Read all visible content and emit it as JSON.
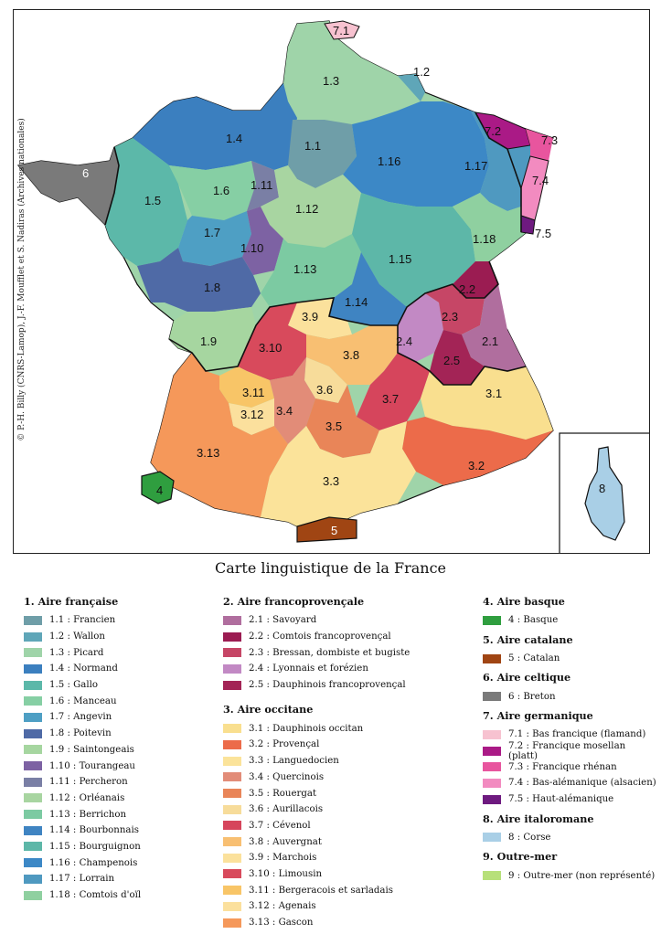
{
  "title": "Carte linguistique de la France",
  "credit": "© P.-H. Billy (CNRS-Lamop), J.-F. Moufflet et S. Nadiras (Archives nationales)",
  "map_labels": {
    "r1_1": "1.1",
    "r1_2": "1.2",
    "r1_3": "1.3",
    "r1_4": "1.4",
    "r1_5": "1.5",
    "r1_6": "1.6",
    "r1_7": "1.7",
    "r1_8": "1.8",
    "r1_9": "1.9",
    "r1_10": "1.10",
    "r1_11": "1.11",
    "r1_12": "1.12",
    "r1_13": "1.13",
    "r1_14": "1.14",
    "r1_15": "1.15",
    "r1_16": "1.16",
    "r1_17": "1.17",
    "r1_18": "1.18",
    "r2_1": "2.1",
    "r2_2": "2.2",
    "r2_3": "2.3",
    "r2_4": "2.4",
    "r2_5": "2.5",
    "r3_1": "3.1",
    "r3_2": "3.2",
    "r3_3": "3.3",
    "r3_4": "3.4",
    "r3_5": "3.5",
    "r3_6": "3.6",
    "r3_7": "3.7",
    "r3_8": "3.8",
    "r3_9": "3.9",
    "r3_10": "3.10",
    "r3_11": "3.11",
    "r3_12": "3.12",
    "r3_13": "3.13",
    "r4": "4",
    "r5": "5",
    "r6": "6",
    "r7_1": "7.1",
    "r7_2": "7.2",
    "r7_3": "7.3",
    "r7_4": "7.4",
    "r7_5": "7.5",
    "r8": "8"
  },
  "colors": {
    "c1_1": "#6f9ea8",
    "c1_2": "#5fa6b8",
    "c1_3": "#9fd4a9",
    "c1_4": "#3b7fbf",
    "c1_5": "#5cb8a9",
    "c1_6": "#86cfa4",
    "c1_7": "#4e9fc4",
    "c1_8": "#4f6aa6",
    "c1_9": "#a6d6a0",
    "c1_10": "#7d62a3",
    "c1_11": "#7a7fa5",
    "c1_12": "#a8d5a1",
    "c1_13": "#7ccaa2",
    "c1_14": "#3f84c2",
    "c1_15": "#5db7a8",
    "c1_16": "#3c88c6",
    "c1_17": "#4f99c0",
    "c1_18": "#8fd0a0",
    "c2_1": "#b06e9e",
    "c2_2": "#9b1c52",
    "c2_3": "#c64666",
    "c2_4": "#c289c4",
    "c2_5": "#a32456",
    "c3_1": "#f9df8f",
    "c3_2": "#ec6b4a",
    "c3_3": "#fbe39a",
    "c3_4": "#e28c78",
    "c3_5": "#e98558",
    "c3_6": "#f7dc9a",
    "c3_7": "#d6455c",
    "c3_8": "#f8bf72",
    "c3_9": "#fbe19c",
    "c3_10": "#d84a5c",
    "c3_11": "#f8c567",
    "c3_12": "#fbe09d",
    "c3_13": "#f5985a",
    "c4": "#2f9e3f",
    "c5": "#a04513",
    "c6": "#7a7a7a",
    "c7_1": "#f7c2d0",
    "c7_2": "#aa1a86",
    "c7_3": "#e8559e",
    "c7_4": "#f28bc0",
    "c7_5": "#6e1a7f",
    "c8": "#a9cfe6",
    "c9": "#b7e07a"
  },
  "legend": {
    "g1": {
      "title": "1. Aire française",
      "items": [
        {
          "label": "1.1 : Francien"
        },
        {
          "label": "1.2 : Wallon"
        },
        {
          "label": "1.3 : Picard"
        },
        {
          "label": "1.4 : Normand"
        },
        {
          "label": "1.5 : Gallo"
        },
        {
          "label": "1.6 : Manceau"
        },
        {
          "label": "1.7 : Angevin"
        },
        {
          "label": "1.8 : Poitevin"
        },
        {
          "label": "1.9 : Saintongeais"
        },
        {
          "label": "1.10 : Tourangeau"
        },
        {
          "label": "1.11 : Percheron"
        },
        {
          "label": "1.12 : Orléanais"
        },
        {
          "label": "1.13 : Berrichon"
        },
        {
          "label": "1.14 : Bourbonnais"
        },
        {
          "label": "1.15 : Bourguignon"
        },
        {
          "label": "1.16 : Champenois"
        },
        {
          "label": "1.17 : Lorrain"
        },
        {
          "label": "1.18 : Comtois d'oïl"
        }
      ]
    },
    "g2": {
      "title": "2. Aire francoprovençale",
      "items": [
        {
          "label": "2.1 : Savoyard"
        },
        {
          "label": "2.2 : Comtois francoprovençal"
        },
        {
          "label": "2.3 : Bressan, dombiste et bugiste"
        },
        {
          "label": "2.4 : Lyonnais et forézien"
        },
        {
          "label": "2.5 : Dauphinois francoprovençal"
        }
      ]
    },
    "g3": {
      "title": "3. Aire occitane",
      "items": [
        {
          "label": "3.1 : Dauphinois occitan"
        },
        {
          "label": "3.2 : Provençal"
        },
        {
          "label": "3.3 : Languedocien"
        },
        {
          "label": "3.4 : Quercinois"
        },
        {
          "label": "3.5 : Rouergat"
        },
        {
          "label": "3.6 : Aurillacois"
        },
        {
          "label": "3.7 : Cévenol"
        },
        {
          "label": "3.8 : Auvergnat"
        },
        {
          "label": "3.9 : Marchois"
        },
        {
          "label": "3.10 : Limousin"
        },
        {
          "label": "3.11 : Bergeracois et sarladais"
        },
        {
          "label": "3.12 : Agenais"
        },
        {
          "label": "3.13 : Gascon"
        }
      ]
    },
    "g4": {
      "title": "4. Aire basque",
      "items": [
        {
          "label": "4 : Basque"
        }
      ]
    },
    "g5": {
      "title": "5. Aire catalane",
      "items": [
        {
          "label": "5 : Catalan"
        }
      ]
    },
    "g6": {
      "title": "6. Aire celtique",
      "items": [
        {
          "label": "6 : Breton"
        }
      ]
    },
    "g7": {
      "title": "7. Aire germanique",
      "items": [
        {
          "label": "7.1 : Bas francique (flamand)"
        },
        {
          "label": "7.2 : Francique mosellan (platt)"
        },
        {
          "label": "7.3 : Francique rhénan"
        },
        {
          "label": "7.4 : Bas-alémanique (alsacien)"
        },
        {
          "label": "7.5 : Haut-alémanique"
        }
      ]
    },
    "g8": {
      "title": "8. Aire italoromane",
      "items": [
        {
          "label": "8 : Corse"
        }
      ]
    },
    "g9": {
      "title": "9. Outre-mer",
      "items": [
        {
          "label": "9 : Outre-mer (non représenté)"
        }
      ]
    }
  }
}
